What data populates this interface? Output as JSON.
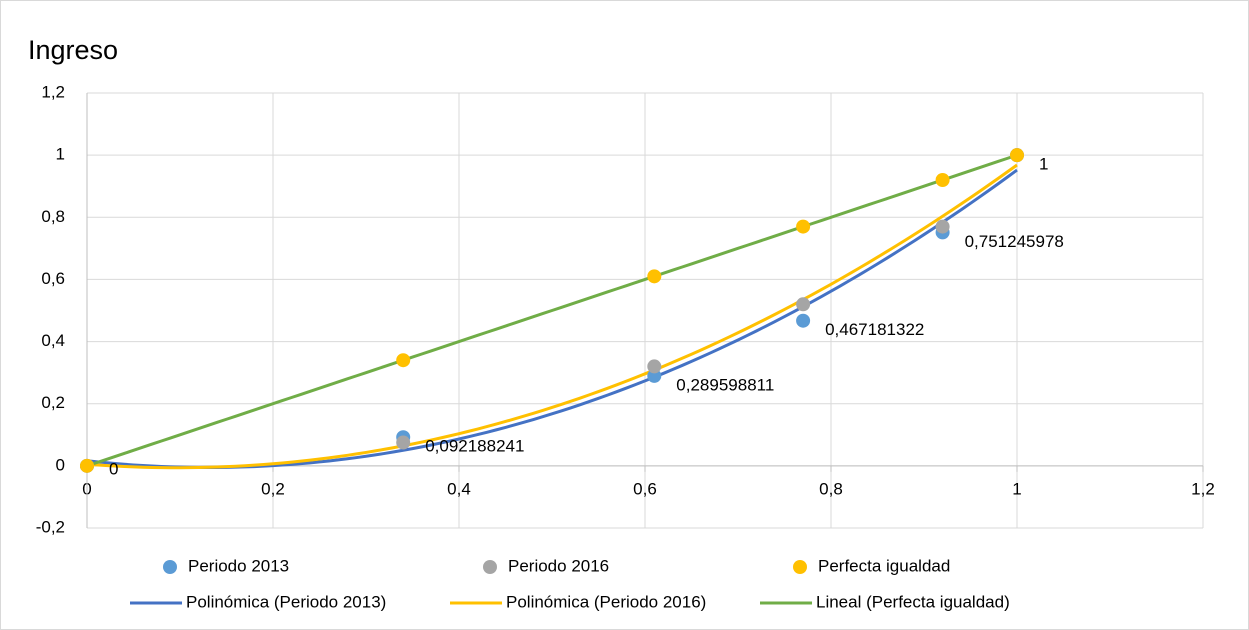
{
  "chart_data": {
    "type": "scatter",
    "title": "Ingreso",
    "x": [
      0,
      0.34,
      0.61,
      0.77,
      0.92,
      1
    ],
    "series": [
      {
        "name": "Periodo 2013",
        "color": "#5b9bd5",
        "values": [
          0,
          0.092188241,
          0.289598811,
          0.467181322,
          0.751245978,
          1
        ],
        "value_labels": [
          "0",
          "0,092188241",
          "0,289598811",
          "0,467181322",
          "0,751245978",
          "1"
        ]
      },
      {
        "name": "Periodo 2016",
        "color": "#a5a5a5",
        "values": [
          0,
          0.075,
          0.32,
          0.52,
          0.77,
          1
        ]
      },
      {
        "name": "Perfecta igualdad",
        "color": "#ffc000",
        "values": [
          0,
          0.34,
          0.61,
          0.77,
          0.92,
          1
        ]
      }
    ],
    "trendlines": [
      {
        "name": "Polinómica (Periodo 2013)",
        "series": 0,
        "order": 2,
        "color": "#4472c4"
      },
      {
        "name": "Polinómica (Periodo 2016)",
        "series": 1,
        "order": 2,
        "color": "#ffc000"
      },
      {
        "name": "Lineal (Perfecta igualdad)",
        "series": 2,
        "order": 1,
        "color": "#70ad47"
      }
    ],
    "xlim": [
      0,
      1.2
    ],
    "xticks": [
      0,
      {
        "value": 0.2,
        "label": "0,2"
      },
      {
        "value": 0.4,
        "label": "0,4"
      },
      {
        "value": 0.6,
        "label": "0,6"
      },
      {
        "value": 0.8,
        "label": "0,8"
      },
      1,
      {
        "value": 1.2,
        "label": "1,2"
      }
    ],
    "ylim": [
      -0.2,
      1.2
    ],
    "yticks": [
      {
        "value": -0.2,
        "label": "-0,2"
      },
      0,
      {
        "value": 0.2,
        "label": "0,2"
      },
      {
        "value": 0.4,
        "label": "0,4"
      },
      {
        "value": 0.6,
        "label": "0,6"
      },
      {
        "value": 0.8,
        "label": "0,8"
      },
      1,
      {
        "value": 1.2,
        "label": "1,2"
      }
    ],
    "grid": true
  }
}
